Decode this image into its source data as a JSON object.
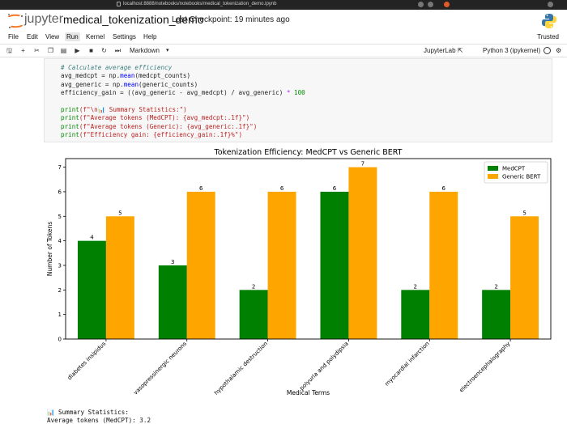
{
  "browser": {
    "url": "localhost:8888/notebooks/notebooks/medical_tokenization_demo.ipynb"
  },
  "header": {
    "brand": "jupyter",
    "notebook_name": "medical_tokenization_demo",
    "checkpoint": "Last Checkpoint: 19 minutes ago",
    "logo_icon": "jupyter-logo-icon",
    "python_icon": "python-logo-icon"
  },
  "menu": {
    "items": [
      "File",
      "Edit",
      "View",
      "Run",
      "Kernel",
      "Settings",
      "Help"
    ],
    "active": "Run",
    "trusted": "Trusted"
  },
  "toolbar": {
    "icons": [
      "save-icon",
      "add-icon",
      "cut-icon",
      "copy-icon",
      "paste-icon",
      "run-icon",
      "stop-icon",
      "restart-icon",
      "fast-forward-icon"
    ],
    "cell_type": "Markdown",
    "jupyterlab": "JupyterLab",
    "kernel": "Python 3 (ipykernel)"
  },
  "code": {
    "comment": "# Calculate average efficiency",
    "l2a": "avg_medcpt = np.",
    "l2fn": "mean",
    "l2b": "(medcpt_counts)",
    "l3a": "avg_generic = np.",
    "l3fn": "mean",
    "l3b": "(generic_counts)",
    "l4a": "efficiency_gain = ((avg_generic - avg_medcpt) / avg_generic) ",
    "l4op": "*",
    "l4num": " 100",
    "l6a": "print",
    "l6s": "(f\"\\n📊 Summary Statistics:\")",
    "l7a": "print",
    "l7s": "(f\"Average tokens (MedCPT): {avg_medcpt:.1f}\")",
    "l8a": "print",
    "l8s": "(f\"Average tokens (Generic): {avg_generic:.1f}\")",
    "l9a": "print",
    "l9s": "(f\"Efficiency gain: {efficiency_gain:.1f}%\")"
  },
  "chart_data": {
    "type": "bar",
    "title": "Tokenization Efficiency: MedCPT vs Generic BERT",
    "xlabel": "Medical Terms",
    "ylabel": "Number of Tokens",
    "categories": [
      "diabetes insipidus",
      "vasopressinergic neurons",
      "hypothalamic destruction",
      "polyuria and polydipsia",
      "myocardial infarction",
      "electroencephalography"
    ],
    "series": [
      {
        "name": "MedCPT",
        "values": [
          4,
          3,
          2,
          6,
          2,
          2
        ],
        "color": "#008000"
      },
      {
        "name": "Generic BERT",
        "values": [
          5,
          6,
          6,
          7,
          6,
          5
        ],
        "color": "#ffa500"
      }
    ],
    "ylim": [
      0,
      7.35
    ],
    "yticks": [
      0,
      1,
      2,
      3,
      4,
      5,
      6,
      7
    ],
    "legend": "top-right",
    "grid": false
  },
  "output": {
    "line1": "📊 Summary Statistics:",
    "line2": "Average tokens (MedCPT): 3.2"
  }
}
